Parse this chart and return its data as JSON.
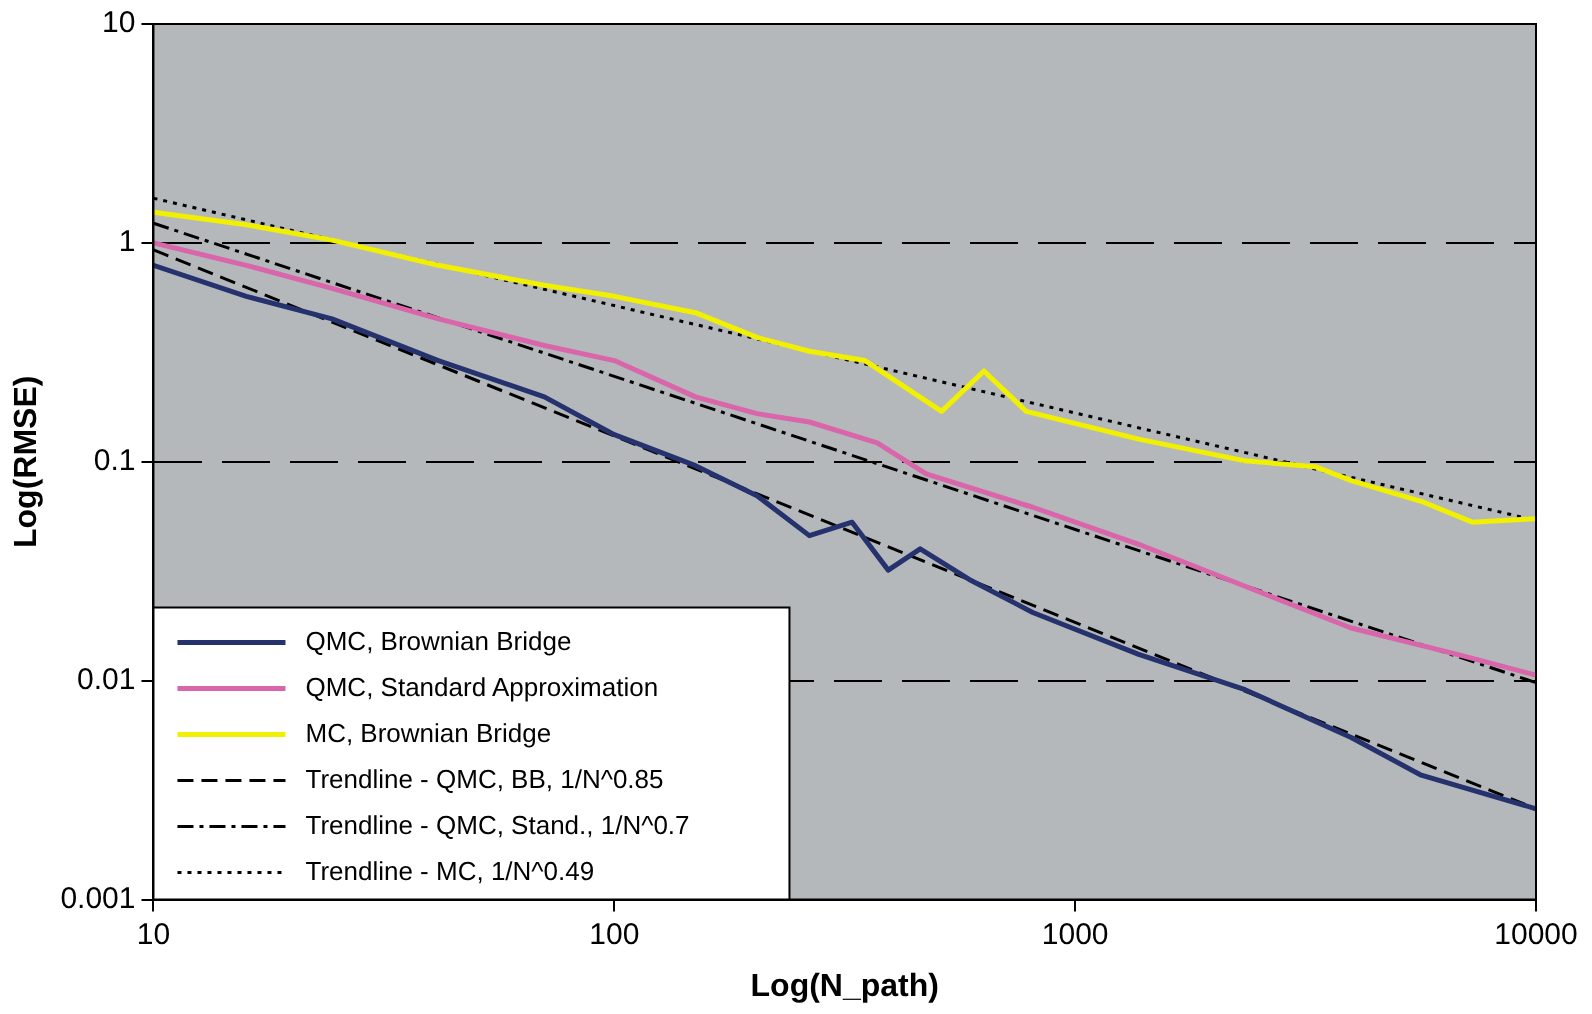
{
  "chart_data": {
    "type": "line",
    "xlabel": "Log(N_path)",
    "ylabel": "Log(RMSE)",
    "log": "xy",
    "xlim": [
      10,
      10000
    ],
    "xticks": [
      10,
      100,
      1000,
      10000
    ],
    "ylim": [
      0.001,
      10
    ],
    "yticks": [
      0.001,
      0.01,
      0.1,
      1,
      10
    ],
    "grid": "y",
    "legend": "bottom left",
    "marker": "none",
    "series": [
      {
        "name": "QMC, Brownian Bridge",
        "color": "#25326e",
        "line_style": "solid",
        "x": [
          10,
          15.9,
          24.4,
          41.5,
          70.5,
          100,
          150,
          204,
          265,
          328,
          393,
          461,
          589,
          809,
          1374,
          2337,
          3972,
          5636,
          10000
        ],
        "values": [
          0.79,
          0.57,
          0.45,
          0.29,
          0.198,
          0.133,
          0.096,
          0.07,
          0.046,
          0.053,
          0.032,
          0.04,
          0.029,
          0.0205,
          0.0132,
          0.0091,
          0.0055,
          0.0037,
          0.0026
        ]
      },
      {
        "name": "QMC, Standard Approximation",
        "color": "#d966aa",
        "line_style": "solid",
        "x": [
          10,
          15.9,
          24.4,
          41.5,
          70.5,
          100,
          150,
          204,
          265,
          372,
          475,
          809,
          1374,
          2337,
          3972,
          6745,
          10000
        ],
        "values": [
          1.0,
          0.79,
          0.62,
          0.45,
          0.34,
          0.29,
          0.198,
          0.166,
          0.152,
          0.122,
          0.088,
          0.062,
          0.042,
          0.027,
          0.0174,
          0.0132,
          0.0106
        ]
      },
      {
        "name": "MC, Brownian Bridge",
        "color": "#f0f000",
        "line_style": "solid",
        "x": [
          10,
          15.9,
          24.4,
          41.5,
          70.5,
          100,
          150,
          204,
          265,
          350,
          513,
          634,
          783,
          1374,
          2337,
          3319,
          3972,
          5636,
          7278,
          10000
        ],
        "values": [
          1.38,
          1.21,
          1.03,
          0.79,
          0.64,
          0.57,
          0.48,
          0.37,
          0.32,
          0.29,
          0.17,
          0.26,
          0.17,
          0.127,
          0.101,
          0.095,
          0.082,
          0.066,
          0.053,
          0.055
        ]
      },
      {
        "name": "Trendline - QMC, BB, 1/N^0.85",
        "color": "#000000",
        "line_style": "dashed",
        "x": [
          10,
          10000
        ],
        "values": [
          0.93,
          0.0026
        ]
      },
      {
        "name": "Trendline - QMC, Stand., 1/N^0.7",
        "color": "#000000",
        "line_style": "dashdot",
        "x": [
          10,
          10000
        ],
        "values": [
          1.23,
          0.0098
        ]
      },
      {
        "name": "Trendline - MC, 1/N^0.49",
        "color": "#000000",
        "line_style": "dotted",
        "x": [
          10,
          10000
        ],
        "values": [
          1.6,
          0.054
        ]
      }
    ]
  }
}
